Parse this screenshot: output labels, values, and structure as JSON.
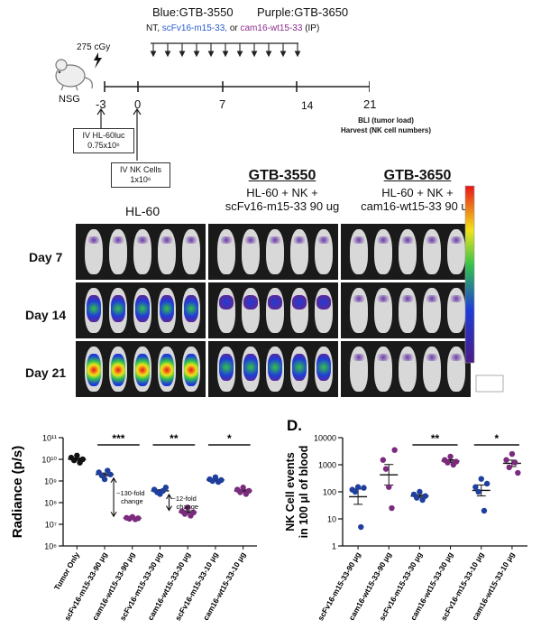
{
  "schematic": {
    "legend_blue": "Blue:GTB-3550",
    "legend_purple": "Purple:GTB-3650",
    "treatments_prefix": "NT,",
    "treatment_1": "scFv16-m15-33,",
    "treatments_or": "or",
    "treatment_2": "cam16-wt15-33",
    "route": "(IP)",
    "dose": "275 cGy",
    "strain": "NSG",
    "timeline_labels": [
      "-3",
      "0",
      "7",
      "14",
      "21"
    ],
    "box_hl60_line1": "IV HL-60luc",
    "box_hl60_line2": "0.75x10⁶",
    "box_nk_line1": "IV NK Cells",
    "box_nk_line2": "1x10⁶",
    "endpoint_line1": "BLI (tumor load)",
    "endpoint_line2": "Harvest (NK cell numbers)"
  },
  "imaging": {
    "group_hl60": "HL-60",
    "group_3550_title": "GTB-3550",
    "group_3550_line1": "HL-60 + NK +",
    "group_3550_line2": "scFv16-m15-33 90 ug",
    "group_3650_title": "GTB-3650",
    "group_3650_line1": "HL-60 + NK +",
    "group_3650_line2": "cam16-wt15-33 90 ug",
    "days": [
      "Day 7",
      "Day 14",
      "Day 21"
    ]
  },
  "chart_data": [
    {
      "type": "scatter",
      "panel_label": "",
      "ylabel": "Radiance (p/s)",
      "yscale": "log",
      "ylim": [
        1000000,
        100000000000
      ],
      "yticks": [
        "10⁶",
        "10⁷",
        "10⁸",
        "10⁹",
        "10¹⁰",
        "10¹¹"
      ],
      "categories": [
        "Tumor Only",
        "scFv16-m15-33-90 μg",
        "cam16-wt15-33-90 μg",
        "scFv16-m15-33-30 μg",
        "cam16-wt15-33-30 μg",
        "scFv16-m15-33-10 μg",
        "cam16-wt15-33-10 μg"
      ],
      "colors": [
        "#111111",
        "#1f3f9e",
        "#7b2a7e",
        "#1f3f9e",
        "#7b2a7e",
        "#1f3f9e",
        "#7b2a7e"
      ],
      "points": [
        [
          12000000000,
          9000000000,
          15000000000,
          7000000000,
          10000000000
        ],
        [
          2500000000,
          1800000000,
          1200000000,
          3000000000,
          2000000000
        ],
        [
          20000000,
          18000000,
          22000000,
          17000000,
          19000000
        ],
        [
          400000000,
          300000000,
          250000000,
          350000000,
          500000000
        ],
        [
          40000000,
          30000000,
          60000000,
          25000000,
          35000000
        ],
        [
          1200000000,
          1000000000,
          1500000000,
          900000000,
          1100000000
        ],
        [
          400000000,
          300000000,
          500000000,
          250000000,
          350000000
        ]
      ],
      "significance": [
        {
          "from": 1,
          "to": 2,
          "label": "***"
        },
        {
          "from": 3,
          "to": 4,
          "label": "**"
        },
        {
          "from": 5,
          "to": 6,
          "label": "*"
        }
      ],
      "annotations": [
        {
          "line1": "~130-fold",
          "line2": "change"
        },
        {
          "line1": "~12-fold",
          "line2": "change"
        }
      ]
    },
    {
      "type": "scatter",
      "panel_label": "D.",
      "ylabel_line1": "NK Cell events",
      "ylabel_line2": "in 100 μl of blood",
      "yscale": "log",
      "ylim": [
        1,
        10000
      ],
      "yticks": [
        "1",
        "10",
        "100",
        "1000",
        "10000"
      ],
      "categories": [
        "scFv16-m15-33-90 μg",
        "cam16-wt15-33-90 μg",
        "scFv16-m15-33-30 μg",
        "cam16-wt15-33-30 μg",
        "scFv16-m15-33-10 μg",
        "cam16-wt15-33-10 μg"
      ],
      "colors": [
        "#1f3f9e",
        "#7b2a7e",
        "#1f3f9e",
        "#7b2a7e",
        "#1f3f9e",
        "#7b2a7e"
      ],
      "points": [
        [
          120,
          100,
          150,
          5,
          140
        ],
        [
          1500,
          700,
          150,
          25,
          3500
        ],
        [
          80,
          60,
          100,
          50,
          70
        ],
        [
          1500,
          1200,
          2000,
          1000,
          1300
        ],
        [
          150,
          100,
          300,
          20,
          200
        ],
        [
          1500,
          800,
          2500,
          1200,
          500
        ]
      ],
      "significance": [
        {
          "from": 2,
          "to": 3,
          "label": "**"
        },
        {
          "from": 4,
          "to": 5,
          "label": "*"
        }
      ]
    }
  ]
}
